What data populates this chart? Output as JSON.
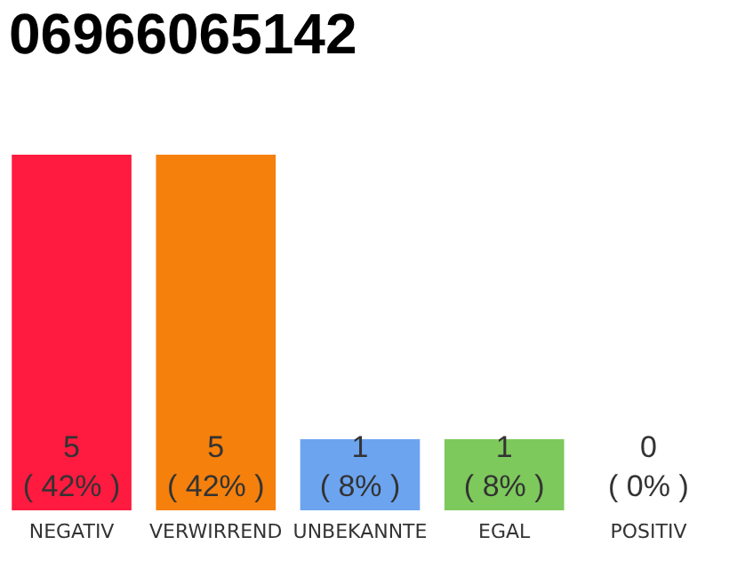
{
  "chart_data": {
    "type": "bar",
    "title": "06966065142",
    "categories": [
      "NEGATIV",
      "VERWIRREND",
      "UNBEKANNTE",
      "EGAL",
      "POSITIV"
    ],
    "values": [
      5,
      5,
      1,
      1,
      0
    ],
    "colors": [
      "#ff1a40",
      "#f5800c",
      "#6ca4f0",
      "#7dc95c",
      "#cccccc"
    ],
    "value_labels": [
      "5\n( 42% )",
      "5\n( 42% )",
      "1\n( 8% )",
      "1\n( 8% )",
      "0\n( 0% )"
    ]
  }
}
